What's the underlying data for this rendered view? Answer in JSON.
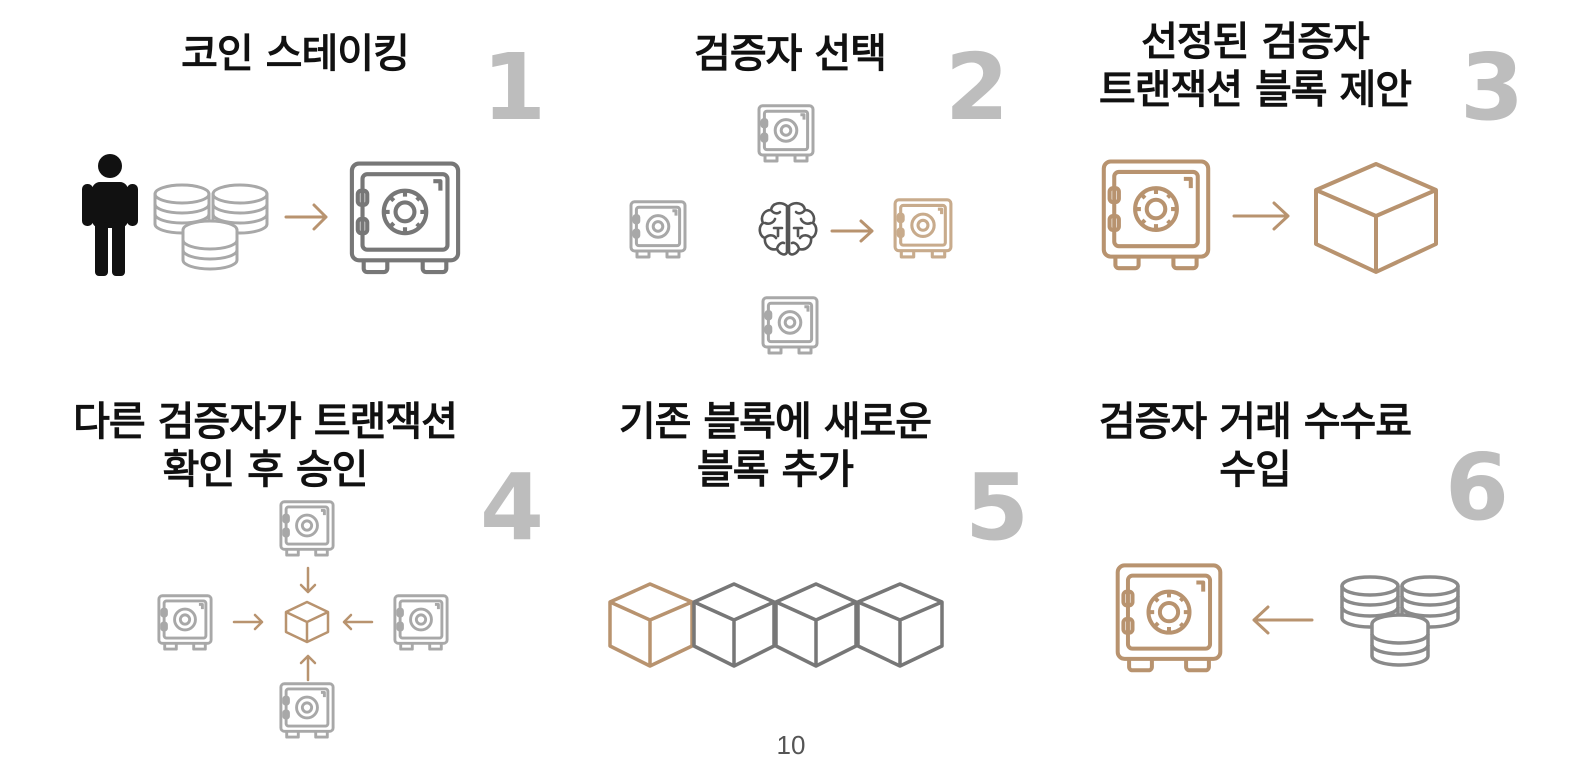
{
  "colors": {
    "accent": "#b8936f",
    "gray_icon": "#8a8a8a",
    "light_gray_icon": "#a8a8a8",
    "step_number": "#bdbdbd",
    "person": "#111111"
  },
  "steps": [
    {
      "number": "1",
      "title": [
        "코인 스테이킹"
      ],
      "icons": [
        "person-icon",
        "coins-icon",
        "arrow-right-icon",
        "safe-icon"
      ]
    },
    {
      "number": "2",
      "title": [
        "검증자 선택"
      ],
      "icons": [
        "safe-icon",
        "brain-icon",
        "arrow-right-icon",
        "safe-icon"
      ]
    },
    {
      "number": "3",
      "title": [
        "선정된 검증자",
        "트랜잭션 블록 제안"
      ],
      "icons": [
        "safe-icon",
        "arrow-right-icon",
        "cube-icon"
      ]
    },
    {
      "number": "4",
      "title": [
        "다른 검증자가 트랜잭션",
        "확인 후 승인"
      ],
      "icons": [
        "safe-icon",
        "arrow-icon",
        "cube-icon"
      ]
    },
    {
      "number": "5",
      "title": [
        "기존 블록에 새로운",
        "블록 추가"
      ],
      "icons": [
        "cube-chain-icon"
      ]
    },
    {
      "number": "6",
      "title": [
        "검증자 거래 수수료",
        "수입"
      ],
      "icons": [
        "safe-icon",
        "arrow-left-icon",
        "coins-icon"
      ]
    }
  ],
  "page_number": "10"
}
